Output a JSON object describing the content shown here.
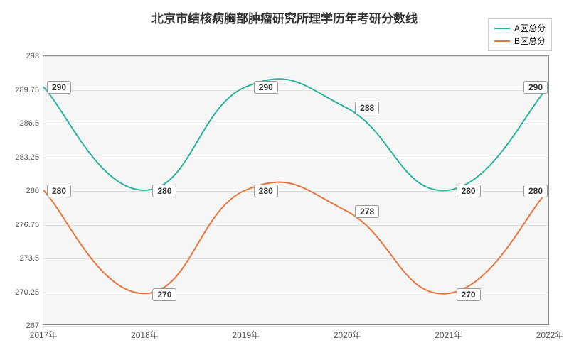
{
  "chart": {
    "type": "line-smooth",
    "title": "北京市结核病胸部肿瘤研究所理学历年考研分数线",
    "title_fontsize": 17,
    "background_color": "#ffffff",
    "plot_background_color": "#f6f6f6",
    "grid_color": "#e0e0e0",
    "axis_color": "#888888",
    "text_color": "#333333",
    "x": {
      "categories": [
        "2017年",
        "2018年",
        "2019年",
        "2020年",
        "2021年",
        "2022年"
      ]
    },
    "y": {
      "ylim": [
        267,
        293
      ],
      "ticks": [
        267,
        270.25,
        273.5,
        276.75,
        280,
        283.25,
        286.5,
        289.75,
        293
      ]
    },
    "series": [
      {
        "name": "A区总分",
        "color": "#29b398",
        "line_width": 2,
        "values": [
          290,
          280,
          290,
          288,
          280,
          290
        ]
      },
      {
        "name": "B区总分",
        "color": "#e8743b",
        "line_width": 2,
        "values": [
          280,
          270,
          280,
          278,
          270,
          280
        ]
      }
    ],
    "legend": {
      "position": "top-right",
      "border_color": "#cccccc"
    },
    "label_style": {
      "fontsize": 12,
      "font_weight": "bold",
      "background": "#ffffff",
      "border_color": "#999999",
      "border_radius": 3
    }
  }
}
